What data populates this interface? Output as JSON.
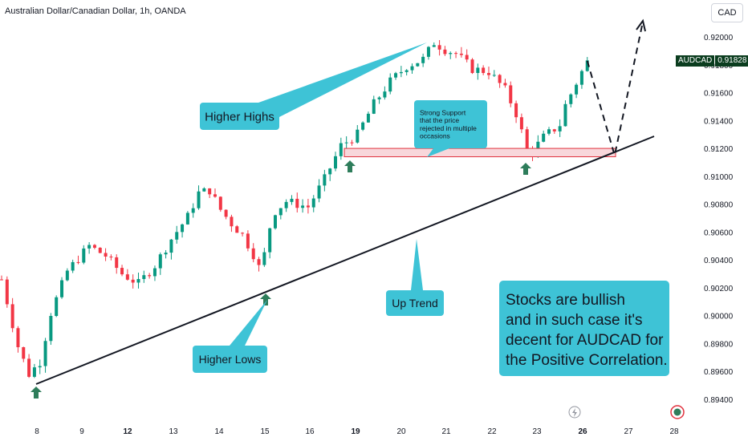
{
  "header": {
    "symbol_title": "Australian Dollar/Canadian Dollar, 1h, OANDA"
  },
  "currency_button": "CAD",
  "price_tag": {
    "symbol": "AUDCAD",
    "value": "0.91828"
  },
  "colors": {
    "up": "#089981",
    "down": "#f23645",
    "callout": "#3ec3d6",
    "support_fill": "#f8d7db",
    "support_stroke": "#e0323e",
    "arrow": "#2e7d5b",
    "trend": "#131722",
    "tag": "#0b3d1f"
  },
  "chart_data": {
    "type": "candlestick",
    "ylim": [
      0.8937,
      0.9213
    ],
    "y_ticks": [
      "0.92000",
      "0.91800",
      "0.91600",
      "0.91400",
      "0.91200",
      "0.91000",
      "0.90800",
      "0.90600",
      "0.90400",
      "0.90200",
      "0.90000",
      "0.89800",
      "0.89600",
      "0.89400"
    ],
    "x_ticks": [
      {
        "label": "8",
        "bold": false
      },
      {
        "label": "9",
        "bold": false
      },
      {
        "label": "12",
        "bold": true
      },
      {
        "label": "13",
        "bold": false
      },
      {
        "label": "14",
        "bold": false
      },
      {
        "label": "15",
        "bold": false
      },
      {
        "label": "16",
        "bold": false
      },
      {
        "label": "19",
        "bold": true
      },
      {
        "label": "20",
        "bold": false
      },
      {
        "label": "21",
        "bold": false
      },
      {
        "label": "22",
        "bold": false
      },
      {
        "label": "23",
        "bold": false
      },
      {
        "label": "26",
        "bold": true
      },
      {
        "label": "27",
        "bold": false
      },
      {
        "label": "28",
        "bold": false
      }
    ],
    "path": [
      [
        0,
        0.9026
      ],
      [
        3,
        0.8978
      ],
      [
        5,
        0.8958
      ],
      [
        7,
        0.8967
      ],
      [
        9,
        0.9002
      ],
      [
        12,
        0.9032
      ],
      [
        16,
        0.905
      ],
      [
        19,
        0.9043
      ],
      [
        22,
        0.903
      ],
      [
        25,
        0.9023
      ],
      [
        28,
        0.9036
      ],
      [
        31,
        0.9055
      ],
      [
        34,
        0.9071
      ],
      [
        36,
        0.9088
      ],
      [
        38,
        0.909
      ],
      [
        40,
        0.9076
      ],
      [
        42,
        0.9066
      ],
      [
        44,
        0.9058
      ],
      [
        46,
        0.9044
      ],
      [
        47.5,
        0.903
      ],
      [
        48.5,
        0.9058
      ],
      [
        50,
        0.9075
      ],
      [
        52,
        0.9082
      ],
      [
        54,
        0.908
      ],
      [
        56,
        0.9078
      ],
      [
        59,
        0.9098
      ],
      [
        62,
        0.9122
      ],
      [
        65,
        0.913
      ],
      [
        68,
        0.9152
      ],
      [
        71,
        0.9168
      ],
      [
        74,
        0.9179
      ],
      [
        77,
        0.9184
      ],
      [
        79,
        0.9196
      ],
      [
        81,
        0.9191
      ],
      [
        83,
        0.9188
      ],
      [
        86,
        0.9177
      ],
      [
        89,
        0.9175
      ],
      [
        92,
        0.9162
      ],
      [
        94,
        0.9145
      ],
      [
        96,
        0.9119
      ],
      [
        97,
        0.9118
      ],
      [
        99,
        0.9128
      ],
      [
        102,
        0.9137
      ],
      [
        103,
        0.9151
      ],
      [
        106,
        0.9175
      ],
      [
        107,
        0.9182
      ]
    ],
    "support_zone": [
      0.9114,
      0.912
    ],
    "projection": [
      [
        107,
        0.91828
      ],
      [
        112,
        0.9115
      ],
      [
        117,
        0.9208
      ]
    ],
    "annotations": [
      {
        "id": "higher-highs",
        "text": "Higher Highs"
      },
      {
        "id": "support",
        "text": "Strong Support\nthat the price\nrejected in multiple\noccasions"
      },
      {
        "id": "up-trend",
        "text": "Up Trend"
      },
      {
        "id": "higher-lows",
        "text": "Higher Lows"
      },
      {
        "id": "note",
        "text": "Stocks are bullish\nand in such case it's\ndecent for AUDCAD for\nthe Positive Correlation."
      }
    ]
  }
}
